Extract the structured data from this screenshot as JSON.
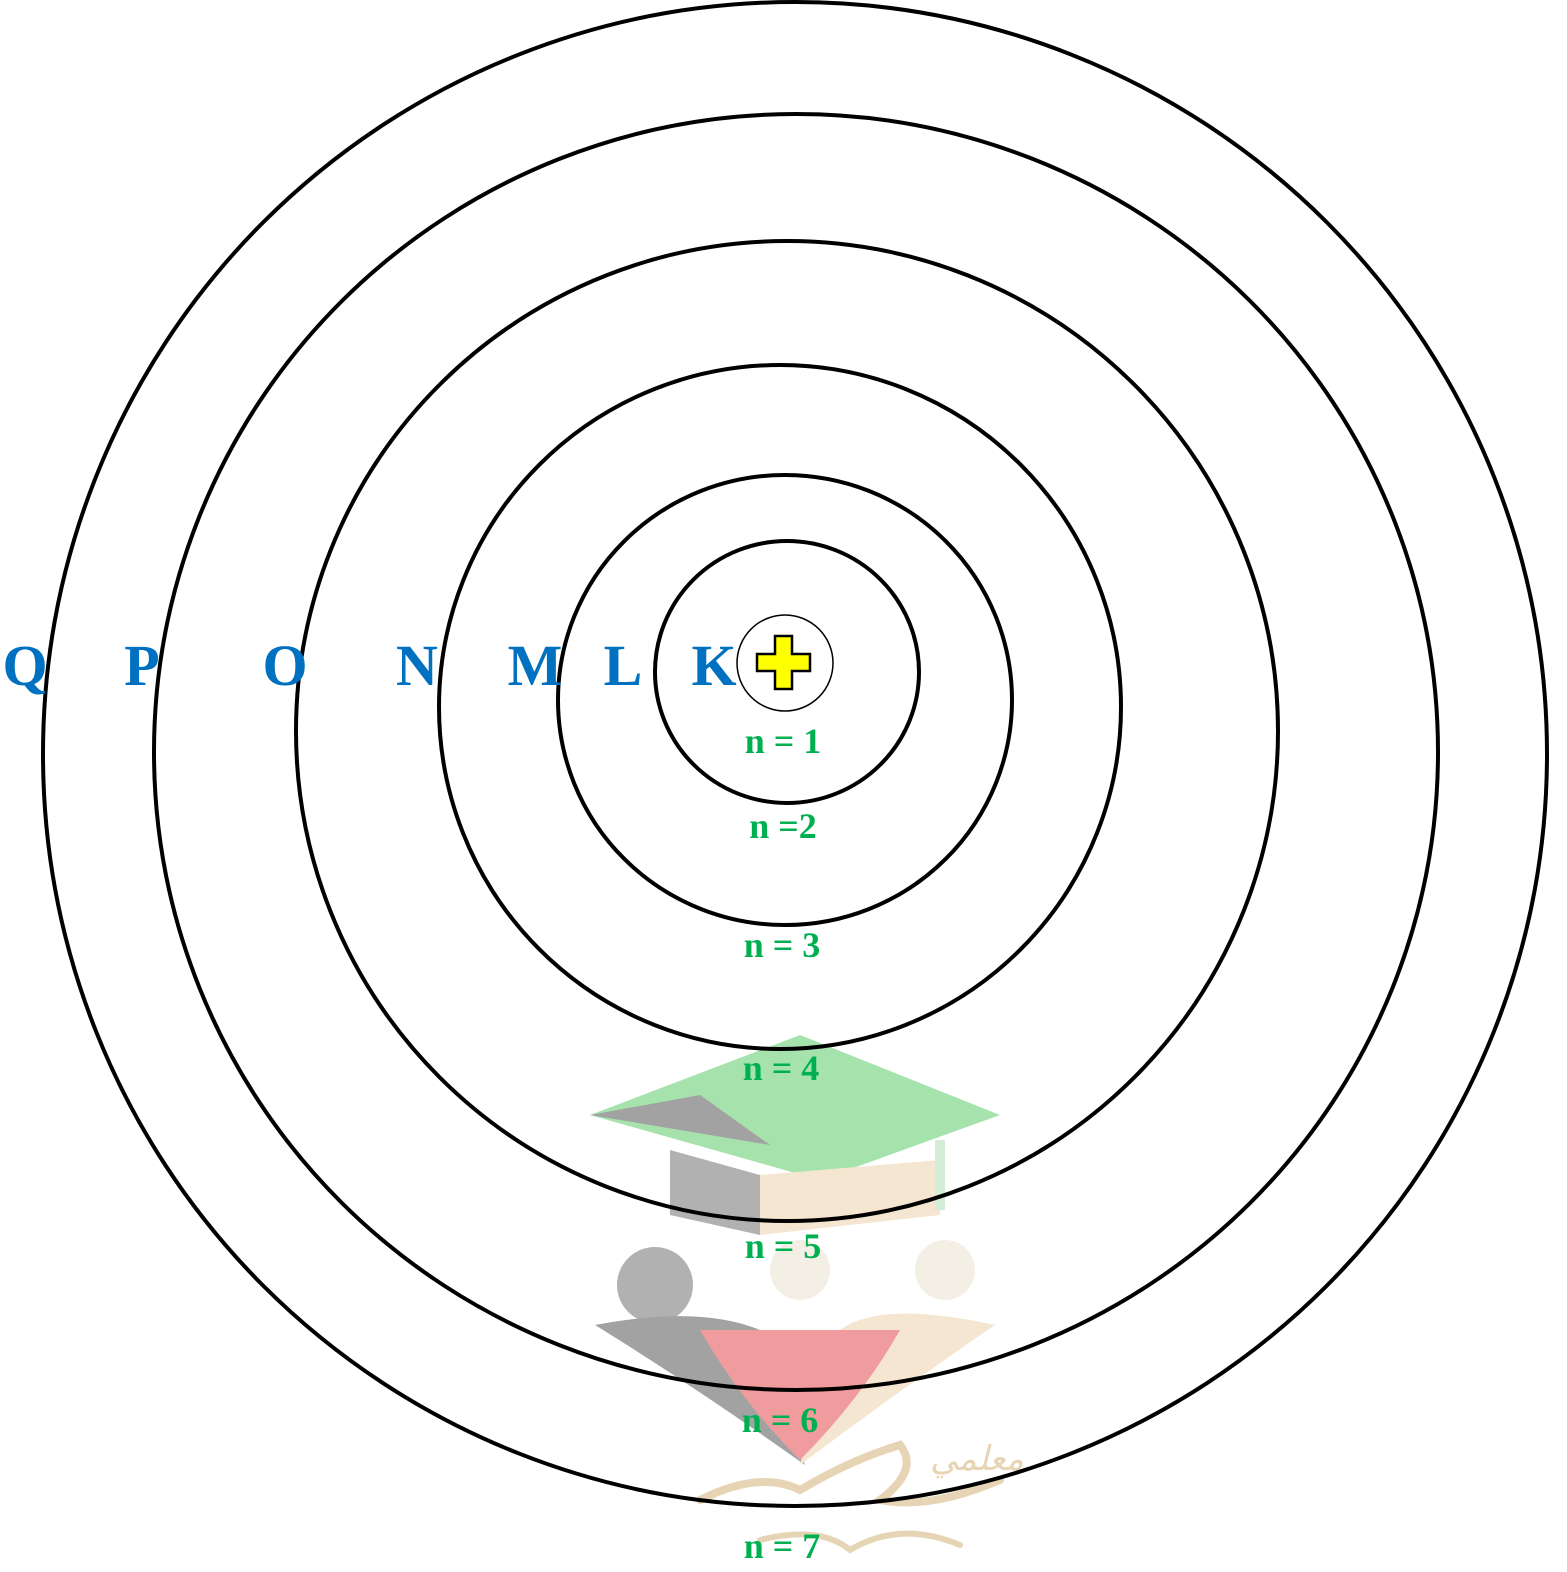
{
  "diagram": {
    "title": "",
    "shells": [
      {
        "letter": "K",
        "level": "n = 1"
      },
      {
        "letter": "L",
        "level": "n =2"
      },
      {
        "letter": "M",
        "level": "n = 3"
      },
      {
        "letter": "N",
        "level": "n = 4"
      },
      {
        "letter": "O",
        "level": "n = 5"
      },
      {
        "letter": "P",
        "level": "n = 6"
      },
      {
        "letter": "Q",
        "level": "n = 7"
      }
    ],
    "nucleus": {
      "symbol": "plus-icon",
      "fill_color": "#ffff00"
    },
    "colors": {
      "shell_stroke": "#000000",
      "letter_color": "#0070c0",
      "level_color": "#00b050"
    },
    "watermark": {
      "icon": "graduation-cap-logo-icon",
      "text": "معلمي"
    }
  }
}
